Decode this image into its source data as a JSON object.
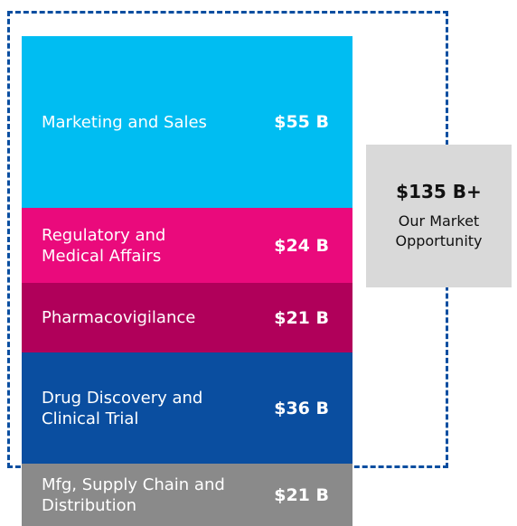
{
  "segments": [
    {
      "label": "Marketing and Sales",
      "value": "$55 B"
    },
    {
      "label": "Regulatory and Medical Affairs",
      "value": "$24 B"
    },
    {
      "label": "Pharmacovigilance",
      "value": "$21 B"
    },
    {
      "label": "Drug Discovery and Clinical Trial",
      "value": "$36 B"
    },
    {
      "label": "Mfg, Supply Chain and Distribution",
      "value": "$21 B"
    }
  ],
  "total": {
    "value": "$135 B+",
    "label": "Our Market Opportunity"
  }
}
